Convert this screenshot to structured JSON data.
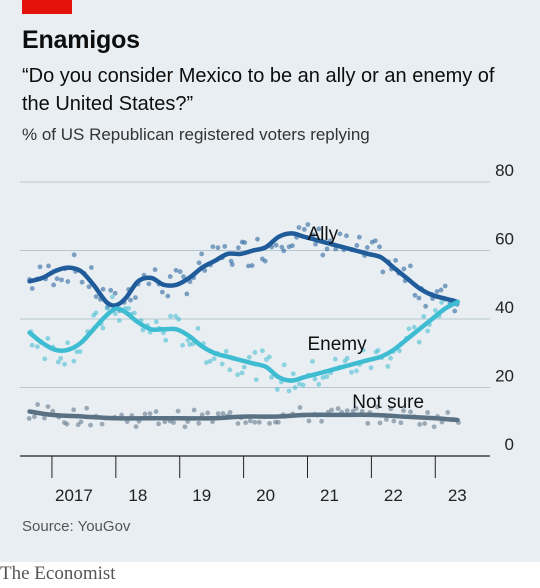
{
  "header": {
    "headline": "Enamigos",
    "subtitle": "“Do you consider Mexico to be an ally or an enemy of the United States?”",
    "description": "% of US Republican registered voters replying"
  },
  "footer": {
    "source": "Source: YouGov",
    "publisher": "The Economist"
  },
  "colors": {
    "background": "#e8eef2",
    "accent": "#e3120b",
    "ally": "#1f5c99",
    "enemy": "#3ebcd2",
    "not_sure": "#5a7184"
  },
  "chart_data": {
    "type": "line",
    "x_range": [
      2016.5,
      2023.7
    ],
    "ylim": [
      0,
      80
    ],
    "y_ticks": [
      0,
      20,
      40,
      60,
      80
    ],
    "x_tick_positions": [
      2017,
      2018,
      2019,
      2020,
      2021,
      2022,
      2023
    ],
    "x_tick_labels": [
      "2017",
      "18",
      "19",
      "20",
      "21",
      "22",
      "23"
    ],
    "grid": true,
    "series": [
      {
        "name": "Ally",
        "x": [
          2016.65,
          2016.85,
          2017.05,
          2017.25,
          2017.45,
          2017.65,
          2017.85,
          2018.0,
          2018.15,
          2018.35,
          2018.55,
          2018.75,
          2018.95,
          2019.15,
          2019.35,
          2019.55,
          2019.75,
          2019.95,
          2020.15,
          2020.35,
          2020.55,
          2020.75,
          2020.95,
          2021.15,
          2021.35,
          2021.55,
          2021.75,
          2021.95,
          2022.15,
          2022.35,
          2022.55,
          2022.75,
          2022.95,
          2023.15,
          2023.35
        ],
        "values": [
          51,
          52,
          54,
          55,
          54,
          50,
          45,
          44,
          46,
          51,
          52,
          50,
          50,
          52,
          55,
          57,
          59,
          59,
          60,
          61,
          64,
          65,
          64,
          63,
          62,
          61,
          60,
          59,
          58,
          55,
          52,
          49,
          47,
          46,
          45
        ]
      },
      {
        "name": "Enemy",
        "x": [
          2016.65,
          2016.85,
          2017.05,
          2017.25,
          2017.45,
          2017.65,
          2017.85,
          2018.0,
          2018.15,
          2018.35,
          2018.55,
          2018.75,
          2018.95,
          2019.15,
          2019.35,
          2019.55,
          2019.75,
          2019.95,
          2020.15,
          2020.35,
          2020.55,
          2020.75,
          2020.95,
          2021.15,
          2021.35,
          2021.55,
          2021.75,
          2021.95,
          2022.15,
          2022.35,
          2022.55,
          2022.75,
          2022.95,
          2023.15,
          2023.35
        ],
        "values": [
          36,
          33,
          31,
          31,
          33,
          37,
          41,
          43,
          42,
          39,
          37,
          37,
          37,
          35,
          32,
          30,
          29,
          28,
          27,
          26,
          23,
          22,
          23,
          24,
          25,
          26,
          27,
          28,
          29,
          31,
          34,
          37,
          40,
          43,
          45
        ]
      },
      {
        "name": "Not sure",
        "x": [
          2016.65,
          2017.0,
          2017.5,
          2018.0,
          2018.5,
          2019.0,
          2019.5,
          2020.0,
          2020.5,
          2021.0,
          2021.5,
          2022.0,
          2022.5,
          2023.0,
          2023.35
        ],
        "values": [
          13,
          12,
          11.5,
          11,
          11,
          11,
          11,
          11.5,
          11.5,
          12,
          12,
          12,
          11.5,
          11,
          10.5
        ]
      }
    ],
    "annotations": [
      {
        "text": "Ally",
        "x": 2021.0,
        "y": 63
      },
      {
        "text": "Enemy",
        "x": 2021.0,
        "y": 31
      },
      {
        "text": "Not sure",
        "x": 2021.7,
        "y": 14
      }
    ]
  }
}
